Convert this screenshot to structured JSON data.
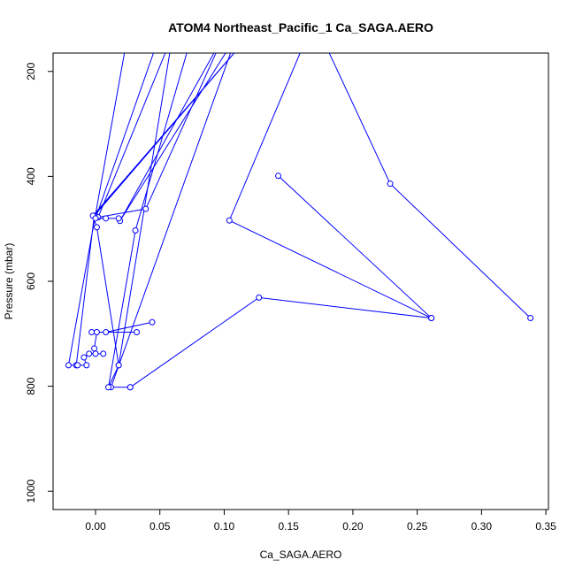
{
  "chart_data": {
    "type": "line",
    "title": "ATOM4 Northeast_Pacific_1 Ca_SAGA.AERO",
    "xlabel": "Ca_SAGA.AERO",
    "ylabel": "Pressure (mbar)",
    "xlim": [
      -0.033,
      0.352
    ],
    "ylim": [
      1035,
      165
    ],
    "y_reversed": true,
    "x_ticks": [
      0.0,
      0.05,
      0.1,
      0.15,
      0.2,
      0.25,
      0.3,
      0.35
    ],
    "x_tick_labels": [
      "0.00",
      "0.05",
      "0.10",
      "0.15",
      "0.20",
      "0.25",
      "0.30",
      "0.35"
    ],
    "y_ticks": [
      200,
      400,
      600,
      800,
      1000
    ],
    "y_tick_labels": [
      "200",
      "400",
      "600",
      "800",
      "1000"
    ],
    "grid": false,
    "legend": "none",
    "color": "#0000ff",
    "series": [
      {
        "points": [
          [
            0.025,
            130
          ],
          [
            -0.021,
            760
          ],
          [
            -0.015,
            760
          ],
          [
            -0.001,
            475
          ],
          [
            0.12,
            130
          ],
          [
            -0.002,
            475
          ],
          [
            0.001,
            497
          ],
          [
            0.018,
            760
          ],
          [
            0.06,
            130
          ],
          [
            0.002,
            478
          ],
          [
            0.039,
            462
          ],
          [
            0.1,
            130
          ],
          [
            0.019,
            485
          ],
          [
            0.11,
            130
          ],
          [
            0.012,
            802
          ],
          [
            0.027,
            802
          ]
        ]
      },
      {
        "points": [
          [
            0.165,
            130
          ],
          [
            0.104,
            484
          ],
          [
            0.261,
            670
          ]
        ]
      },
      {
        "points": [
          [
            0.175,
            130
          ],
          [
            0.229,
            414
          ],
          [
            0.338,
            670
          ]
        ]
      },
      {
        "points": [
          [
            0.142,
            399
          ],
          [
            0.261,
            670
          ],
          [
            0.127,
            631
          ],
          [
            0.027,
            802
          ]
        ]
      },
      {
        "points": [
          [
            0.075,
            130
          ],
          [
            0.031,
            503
          ],
          [
            0.01,
            802
          ],
          [
            0.018,
            760
          ]
        ]
      },
      {
        "points": [
          [
            0.044,
            678
          ],
          [
            0.008,
            697
          ],
          [
            0.032,
            697
          ],
          [
            -0.003,
            697
          ],
          [
            0.001,
            697
          ],
          [
            -0.001,
            728
          ],
          [
            0.0,
            738
          ],
          [
            0.006,
            738
          ],
          [
            -0.005,
            738
          ],
          [
            -0.009,
            745
          ],
          [
            -0.007,
            760
          ],
          [
            -0.014,
            760
          ]
        ]
      },
      {
        "points": [
          [
            0.05,
            130
          ],
          [
            0.0,
            480
          ],
          [
            0.008,
            480
          ],
          [
            0.018,
            480
          ]
        ]
      }
    ]
  }
}
